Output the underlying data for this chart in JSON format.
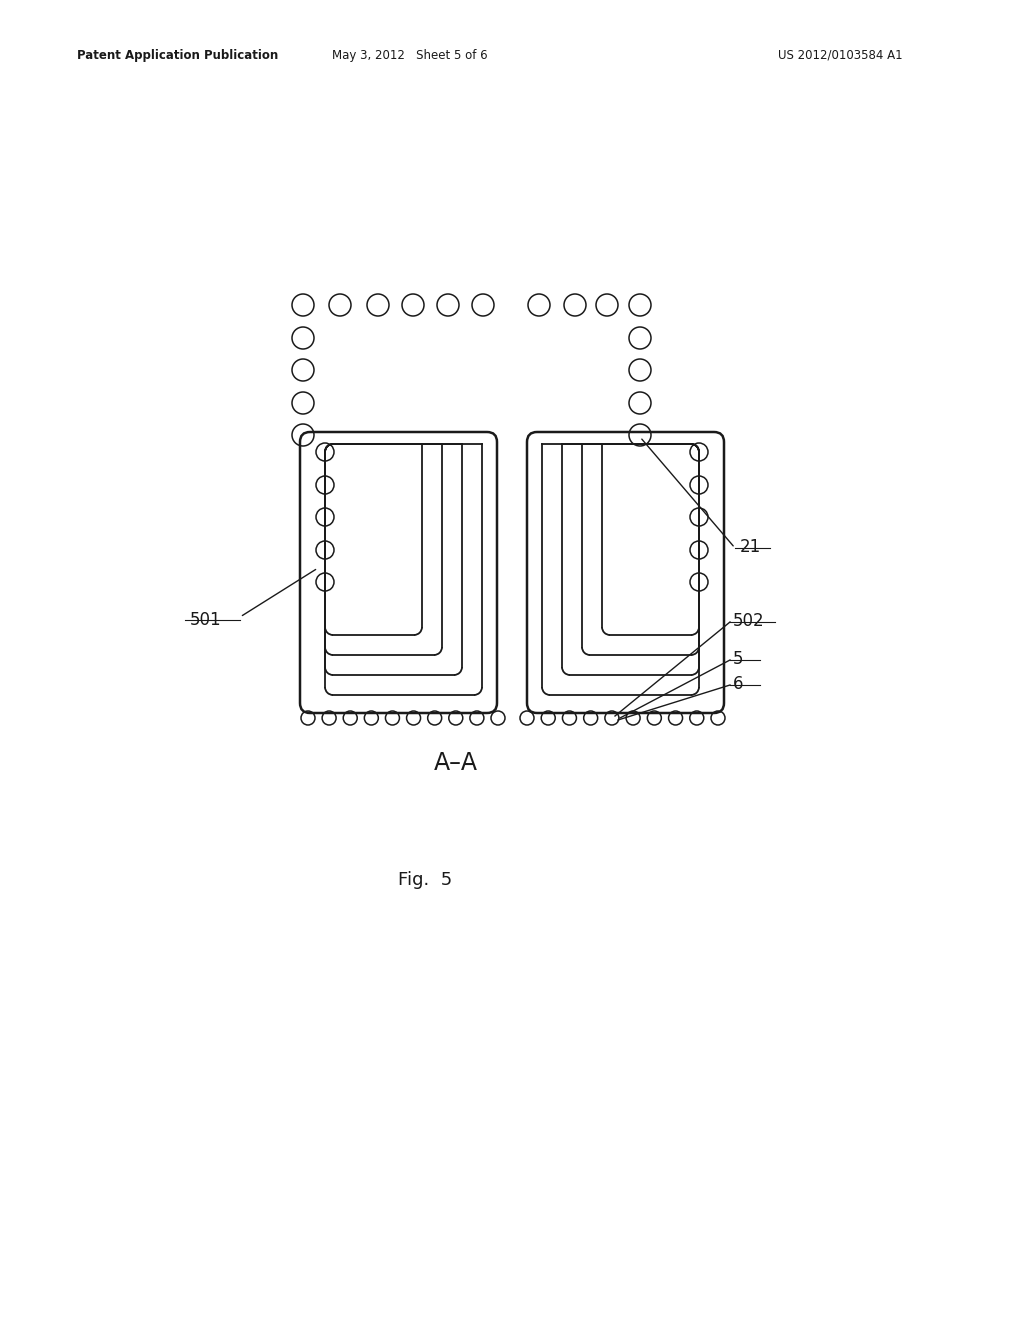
{
  "header_left": "Patent Application Publication",
  "header_mid": "May 3, 2012   Sheet 5 of 6",
  "header_right": "US 2012/0103584 A1",
  "fig_label": "Fig.  5",
  "bg_color": "#ffffff",
  "line_color": "#1a1a1a",
  "lw_outer": 1.8,
  "lw_inner": 1.3,
  "lw_circle": 1.1,
  "lw_leader": 1.0
}
